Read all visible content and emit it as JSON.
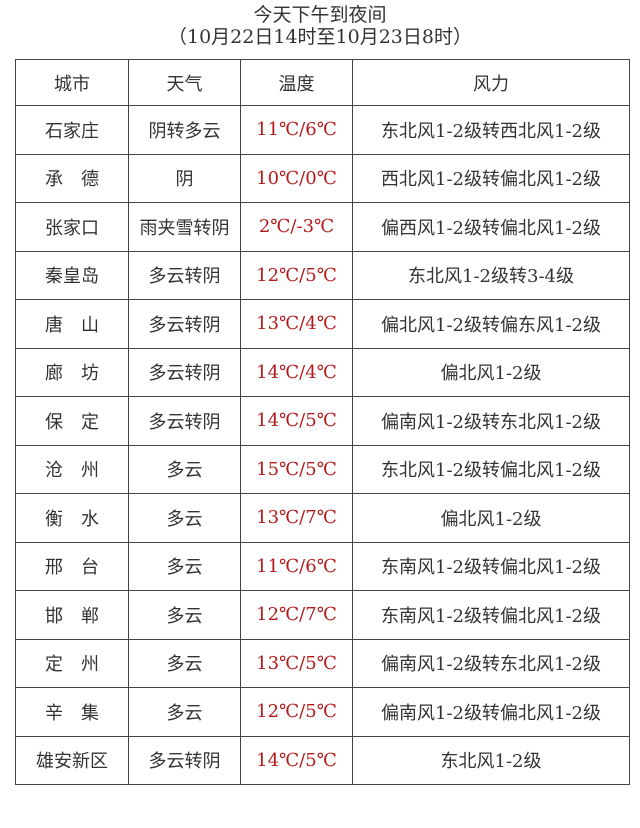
{
  "title": "今天下午到夜间",
  "subtitle": "（10月22日14时至10月23日8时）",
  "headers": {
    "city": "城市",
    "weather": "天气",
    "temp": "温度",
    "wind": "风力"
  },
  "colors": {
    "temperature": "#b41a1a",
    "text": "#333333"
  },
  "rows": [
    {
      "city": "石家庄",
      "weather": "阴转多云",
      "temp": "11℃/6℃",
      "wind": "东北风1-2级转西北风1-2级"
    },
    {
      "city": "承　德",
      "weather": "阴",
      "temp": "10℃/0℃",
      "wind": "西北风1-2级转偏北风1-2级"
    },
    {
      "city": "张家口",
      "weather": "雨夹雪转阴",
      "temp": "2℃/-3℃",
      "wind": "偏西风1-2级转偏北风1-2级"
    },
    {
      "city": "秦皇岛",
      "weather": "多云转阴",
      "temp": "12℃/5℃",
      "wind": "东北风1-2级转3-4级"
    },
    {
      "city": "唐　山",
      "weather": "多云转阴",
      "temp": "13℃/4℃",
      "wind": "偏北风1-2级转偏东风1-2级"
    },
    {
      "city": "廊　坊",
      "weather": "多云转阴",
      "temp": "14℃/4℃",
      "wind": "偏北风1-2级"
    },
    {
      "city": "保　定",
      "weather": "多云转阴",
      "temp": "14℃/5℃",
      "wind": "偏南风1-2级转东北风1-2级"
    },
    {
      "city": "沧　州",
      "weather": "多云",
      "temp": "15℃/5℃",
      "wind": "东北风1-2级转偏北风1-2级"
    },
    {
      "city": "衡　水",
      "weather": "多云",
      "temp": "13℃/7℃",
      "wind": "偏北风1-2级"
    },
    {
      "city": "邢　台",
      "weather": "多云",
      "temp": "11℃/6℃",
      "wind": "东南风1-2级转偏北风1-2级"
    },
    {
      "city": "邯　郸",
      "weather": "多云",
      "temp": "12℃/7℃",
      "wind": "东南风1-2级转偏北风1-2级"
    },
    {
      "city": "定　州",
      "weather": "多云",
      "temp": "13℃/5℃",
      "wind": "偏南风1-2级转东北风1-2级"
    },
    {
      "city": "辛　集",
      "weather": "多云",
      "temp": "12℃/5℃",
      "wind": "偏南风1-2级转偏北风1-2级"
    },
    {
      "city": "雄安新区",
      "weather": "多云转阴",
      "temp": "14℃/5℃",
      "wind": "东北风1-2级"
    }
  ]
}
